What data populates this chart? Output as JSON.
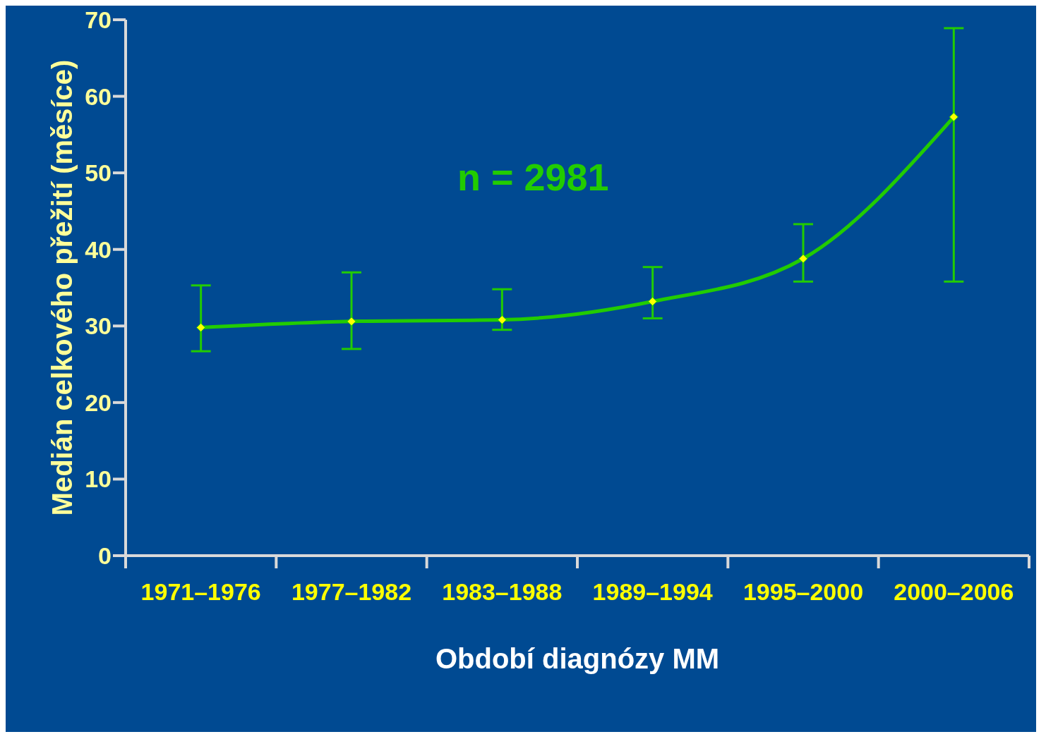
{
  "chart_data": {
    "type": "line",
    "xlabel": "Období diagnózy MM",
    "ylabel": "Medián celkového přežití (měsíce)",
    "annotations": [
      "n = 2981"
    ],
    "categories": [
      "1971–1976",
      "1977–1982",
      "1983–1988",
      "1989–1994",
      "1995–2000",
      "2000–2006"
    ],
    "series": [
      {
        "color": "#22cc00",
        "values": [
          29.8,
          30.6,
          30.8,
          33.2,
          38.8,
          57.3
        ],
        "errors": [
          [
            26.7,
            35.3
          ],
          [
            27,
            37
          ],
          [
            29.5,
            34.8
          ],
          [
            31,
            37.7
          ],
          [
            35.8,
            43.3
          ],
          [
            35.8,
            68.9
          ]
        ]
      }
    ],
    "ylim": [
      0,
      70
    ],
    "yticks": [
      0,
      10,
      20,
      30,
      40,
      50,
      60,
      70
    ],
    "marker": "diamond",
    "line_style": "solid"
  }
}
